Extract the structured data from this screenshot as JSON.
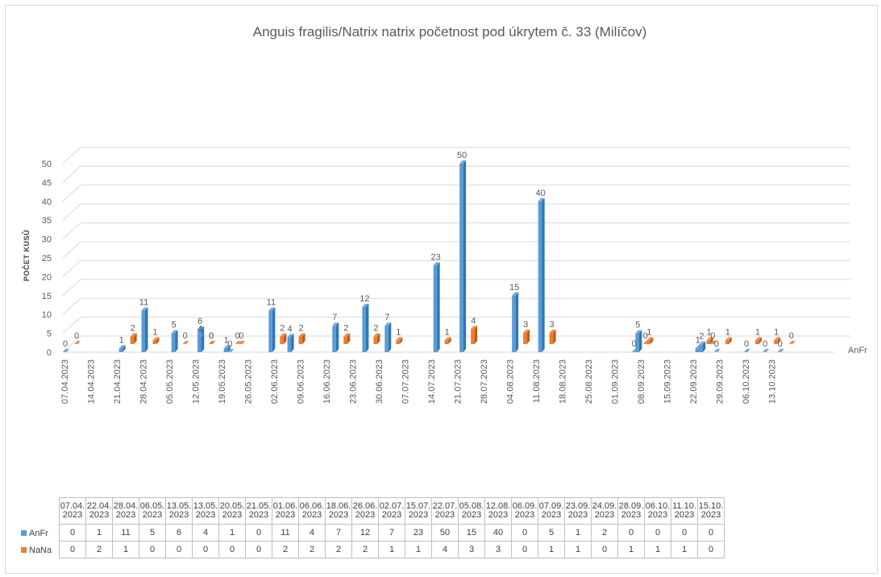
{
  "chart_data": {
    "type": "bar",
    "title": "Anguis fragilis/Natrix natrix početnost pod úkrytem č. 33 (Milíčov)",
    "ylabel": "POČET KUSŮ",
    "xlabel": "",
    "ylim": [
      0,
      50
    ],
    "yticks": [
      0,
      5,
      10,
      15,
      20,
      25,
      30,
      35,
      40,
      45,
      50
    ],
    "grid": true,
    "axis_ticks": [
      "07.04.2023",
      "14.04.2023",
      "21.04.2023",
      "28.04.2023",
      "05.05.2023",
      "12.05.2023",
      "19.05.2023",
      "26.05.2023",
      "02.06.2023",
      "09.06.2023",
      "16.06.2023",
      "23.06.2023",
      "30.06.2023",
      "07.07.2023",
      "14.07.2023",
      "21.07.2023",
      "28.07.2023",
      "04.08.2023",
      "11.08.2023",
      "18.08.2023",
      "25.08.2023",
      "01.09.2023",
      "08.09.2023",
      "15.09.2023",
      "22.09.2023",
      "29.09.2023",
      "06.10.2023",
      "13.10.2023"
    ],
    "depth_axis_label": "AnFr",
    "categories": [
      "07.04.2023",
      "22.04.2023",
      "28.04.2023",
      "06.05.2023",
      "13.05.2023",
      "13.05.2023",
      "20.05.2023",
      "21.05.2023",
      "01.06.2023",
      "06.06.2023",
      "18.06.2023",
      "26.06.2023",
      "02.07.2023",
      "15.07.2023",
      "22.07.2023",
      "05.08.2023",
      "12.08.2023",
      "06.09.2023",
      "07.09.2023",
      "23.09.2023",
      "24.09.2023",
      "28.09.2023",
      "06.10.2023",
      "11.10.2023",
      "15.10.2023"
    ],
    "table_headers": [
      [
        "07.04.",
        "2023"
      ],
      [
        "22.04.",
        "2023"
      ],
      [
        "28.04.",
        "2023"
      ],
      [
        "06.05.",
        "2023"
      ],
      [
        "13.05.",
        "2023"
      ],
      [
        "13.05.",
        "2023"
      ],
      [
        "20.05.",
        "2023"
      ],
      [
        "21.05.",
        "2023"
      ],
      [
        "01.06.",
        "2023"
      ],
      [
        "06.06.",
        "2023"
      ],
      [
        "18.06.",
        "2023"
      ],
      [
        "26.06.",
        "2023"
      ],
      [
        "02.07.",
        "2023"
      ],
      [
        "15.07.",
        "2023"
      ],
      [
        "22.07.",
        "2023"
      ],
      [
        "05.08.",
        "2023"
      ],
      [
        "12.08.",
        "2023"
      ],
      [
        "06.09.",
        "2023"
      ],
      [
        "07.09.",
        "2023"
      ],
      [
        "23.09.",
        "2023"
      ],
      [
        "24.09.",
        "2023"
      ],
      [
        "28.09.",
        "2023"
      ],
      [
        "06.10.",
        "2023"
      ],
      [
        "11.10.",
        "2023"
      ],
      [
        "15.10.",
        "2023"
      ]
    ],
    "series": [
      {
        "name": "AnFr",
        "color": "#5b9bd5",
        "values": [
          0,
          1,
          11,
          5,
          6,
          4,
          1,
          0,
          11,
          4,
          7,
          12,
          7,
          23,
          50,
          15,
          40,
          0,
          5,
          1,
          2,
          0,
          0,
          0,
          0
        ]
      },
      {
        "name": "NaNa",
        "color": "#ed7d31",
        "values": [
          0,
          2,
          1,
          0,
          0,
          0,
          0,
          0,
          2,
          2,
          2,
          2,
          1,
          1,
          4,
          3,
          3,
          0,
          1,
          1,
          0,
          1,
          1,
          1,
          0
        ]
      }
    ]
  }
}
